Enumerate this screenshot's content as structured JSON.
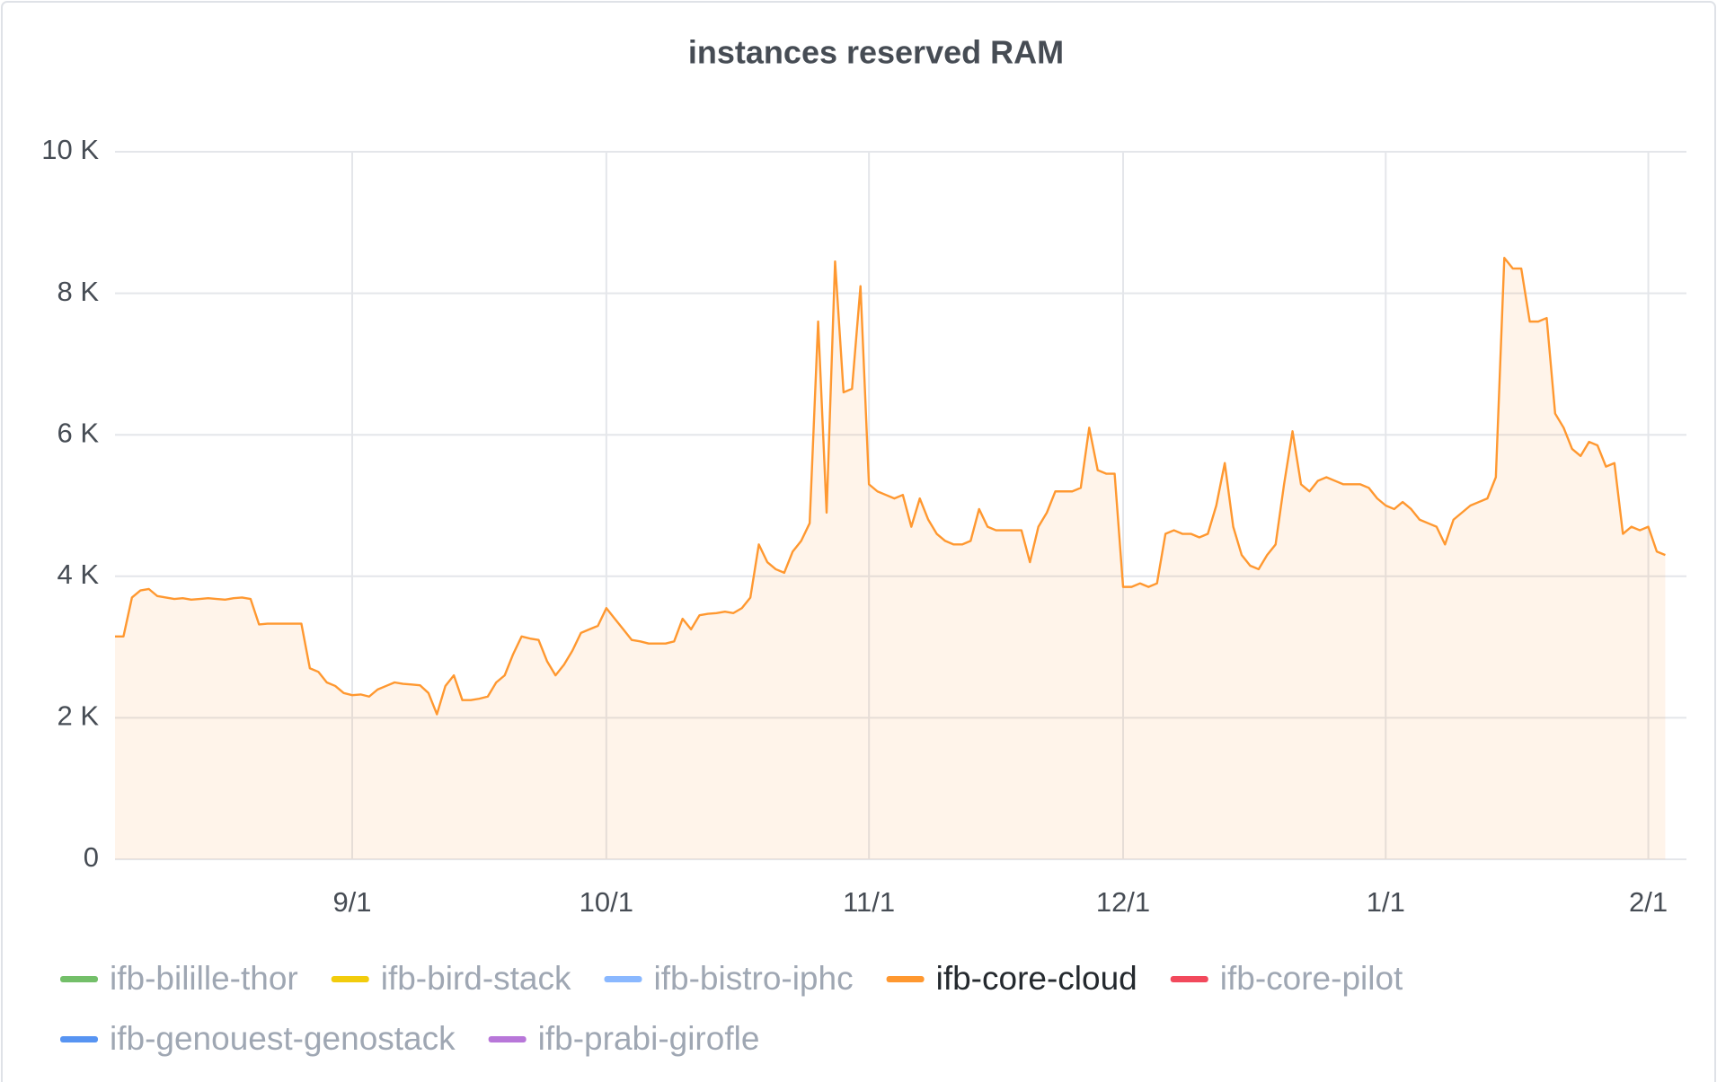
{
  "chart_data": {
    "type": "line",
    "title": "instances reserved RAM",
    "categories": [
      "8/4",
      "8/5",
      "8/6",
      "8/7",
      "8/8",
      "8/9",
      "8/10",
      "8/11",
      "8/12",
      "8/13",
      "8/14",
      "8/15",
      "8/16",
      "8/17",
      "8/18",
      "8/19",
      "8/20",
      "8/21",
      "8/22",
      "8/23",
      "8/24",
      "8/25",
      "8/26",
      "8/27",
      "8/28",
      "8/29",
      "8/30",
      "8/31",
      "9/1",
      "9/2",
      "9/3",
      "9/4",
      "9/5",
      "9/6",
      "9/7",
      "9/8",
      "9/9",
      "9/10",
      "9/11",
      "9/12",
      "9/13",
      "9/14",
      "9/15",
      "9/16",
      "9/17",
      "9/18",
      "9/19",
      "9/20",
      "9/21",
      "9/22",
      "9/23",
      "9/24",
      "9/25",
      "9/26",
      "9/27",
      "9/28",
      "9/29",
      "9/30",
      "10/1",
      "10/2",
      "10/3",
      "10/4",
      "10/5",
      "10/6",
      "10/7",
      "10/8",
      "10/9",
      "10/10",
      "10/11",
      "10/12",
      "10/13",
      "10/14",
      "10/15",
      "10/16",
      "10/17",
      "10/18",
      "10/19",
      "10/20",
      "10/21",
      "10/22",
      "10/23",
      "10/24",
      "10/25",
      "10/26",
      "10/27",
      "10/28",
      "10/29",
      "10/30",
      "10/31",
      "11/1",
      "11/2",
      "11/3",
      "11/4",
      "11/5",
      "11/6",
      "11/7",
      "11/8",
      "11/9",
      "11/10",
      "11/11",
      "11/12",
      "11/13",
      "11/14",
      "11/15",
      "11/16",
      "11/17",
      "11/18",
      "11/19",
      "11/20",
      "11/21",
      "11/22",
      "11/23",
      "11/24",
      "11/25",
      "11/26",
      "11/27",
      "11/28",
      "11/29",
      "11/30",
      "12/1",
      "12/2",
      "12/3",
      "12/4",
      "12/5",
      "12/6",
      "12/7",
      "12/8",
      "12/9",
      "12/10",
      "12/11",
      "12/12",
      "12/13",
      "12/14",
      "12/15",
      "12/16",
      "12/17",
      "12/18",
      "12/19",
      "12/20",
      "12/21",
      "12/22",
      "12/23",
      "12/24",
      "12/25",
      "12/26",
      "12/27",
      "12/28",
      "12/29",
      "12/30",
      "12/31",
      "1/1",
      "1/2",
      "1/3",
      "1/4",
      "1/5",
      "1/6",
      "1/7",
      "1/8",
      "1/9",
      "1/10",
      "1/11",
      "1/12",
      "1/13",
      "1/14",
      "1/15",
      "1/16",
      "1/17",
      "1/18",
      "1/19",
      "1/20",
      "1/21",
      "1/22",
      "1/23",
      "1/24",
      "1/25",
      "1/26",
      "1/27",
      "1/28",
      "1/29",
      "1/30",
      "1/31",
      "2/1",
      "2/2",
      "2/3"
    ],
    "xticks": [
      "9/1",
      "10/1",
      "11/1",
      "12/1",
      "1/1",
      "2/1"
    ],
    "ylim": [
      0,
      10000
    ],
    "yticks": [
      0,
      {
        "value": 2000,
        "label": "2 K"
      },
      {
        "value": 4000,
        "label": "4 K"
      },
      {
        "value": 6000,
        "label": "6 K"
      },
      {
        "value": 8000,
        "label": "8 K"
      },
      {
        "value": 10000,
        "label": "10 K"
      }
    ],
    "grid": true,
    "legend": "bottom",
    "series": [
      {
        "name": "ifb-bilille-thor",
        "color": "#73bf69",
        "visible": false
      },
      {
        "name": "ifb-bird-stack",
        "color": "#f2cc0c",
        "visible": false
      },
      {
        "name": "ifb-bistro-iphc",
        "color": "#8ab8ff",
        "visible": false
      },
      {
        "name": "ifb-core-cloud",
        "color": "#ff9830",
        "visible": true,
        "values": [
          3150,
          3150,
          3700,
          3800,
          3820,
          3720,
          3700,
          3680,
          3690,
          3670,
          3680,
          3690,
          3680,
          3670,
          3690,
          3700,
          3680,
          3320,
          3330,
          3330,
          3330,
          3330,
          3330,
          2700,
          2650,
          2500,
          2450,
          2350,
          2320,
          2330,
          2300,
          2400,
          2450,
          2500,
          2480,
          2470,
          2460,
          2350,
          2050,
          2450,
          2600,
          2250,
          2250,
          2270,
          2300,
          2500,
          2600,
          2900,
          3150,
          3120,
          3100,
          2800,
          2600,
          2750,
          2950,
          3200,
          3250,
          3300,
          3550,
          3400,
          3250,
          3100,
          3080,
          3050,
          3050,
          3050,
          3080,
          3400,
          3250,
          3450,
          3470,
          3480,
          3500,
          3480,
          3550,
          3700,
          4450,
          4200,
          4100,
          4050,
          4350,
          4500,
          4750,
          7600,
          4900,
          8450,
          6600,
          6650,
          8100,
          5300,
          5200,
          5150,
          5100,
          5150,
          4700,
          5100,
          4800,
          4600,
          4500,
          4450,
          4450,
          4500,
          4950,
          4700,
          4650,
          4650,
          4650,
          4650,
          4200,
          4700,
          4900,
          5200,
          5200,
          5200,
          5250,
          6100,
          5500,
          5450,
          5450,
          3850,
          3850,
          3900,
          3850,
          3900,
          4600,
          4650,
          4600,
          4600,
          4550,
          4600,
          5000,
          5600,
          4700,
          4300,
          4150,
          4100,
          4300,
          4450,
          5300,
          6050,
          5300,
          5200,
          5350,
          5400,
          5350,
          5300,
          5300,
          5300,
          5250,
          5100,
          5000,
          4950,
          5050,
          4950,
          4800,
          4750,
          4700,
          4450,
          4800,
          4900,
          5000,
          5050,
          5100,
          5400,
          8500,
          8350,
          8350,
          7600,
          7600,
          7650,
          6300,
          6100,
          5800,
          5700,
          5900,
          5850,
          5550,
          5600,
          4600,
          4700,
          4650,
          4700,
          4350,
          4300
        ]
      },
      {
        "name": "ifb-core-pilot",
        "color": "#f2495c",
        "visible": false
      },
      {
        "name": "ifb-genouest-genostack",
        "color": "#5794f2",
        "visible": false
      },
      {
        "name": "ifb-prabi-girofle",
        "color": "#b877d9",
        "visible": false
      }
    ]
  }
}
